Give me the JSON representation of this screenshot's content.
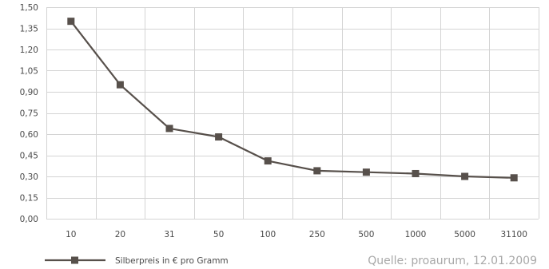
{
  "chart_data": {
    "type": "line",
    "categories": [
      "10",
      "20",
      "31",
      "50",
      "100",
      "250",
      "500",
      "1000",
      "5000",
      "31100"
    ],
    "series": [
      {
        "name": "Silberpreis in € pro Gramm",
        "values": [
          1.4,
          0.95,
          0.64,
          0.58,
          0.41,
          0.34,
          0.33,
          0.32,
          0.3,
          0.29
        ],
        "color": "#57504b"
      }
    ],
    "yticks": [
      "0,00",
      "0,15",
      "0,30",
      "0,45",
      "0,60",
      "0,75",
      "0,90",
      "1,05",
      "1,20",
      "1,35",
      "1,50"
    ],
    "ylim": [
      0,
      1.5
    ],
    "grid": true,
    "grid_color": "#d4d4d4",
    "legend": "bottom-left"
  },
  "source_note": "Quelle: proaurum, 12.01.2009"
}
